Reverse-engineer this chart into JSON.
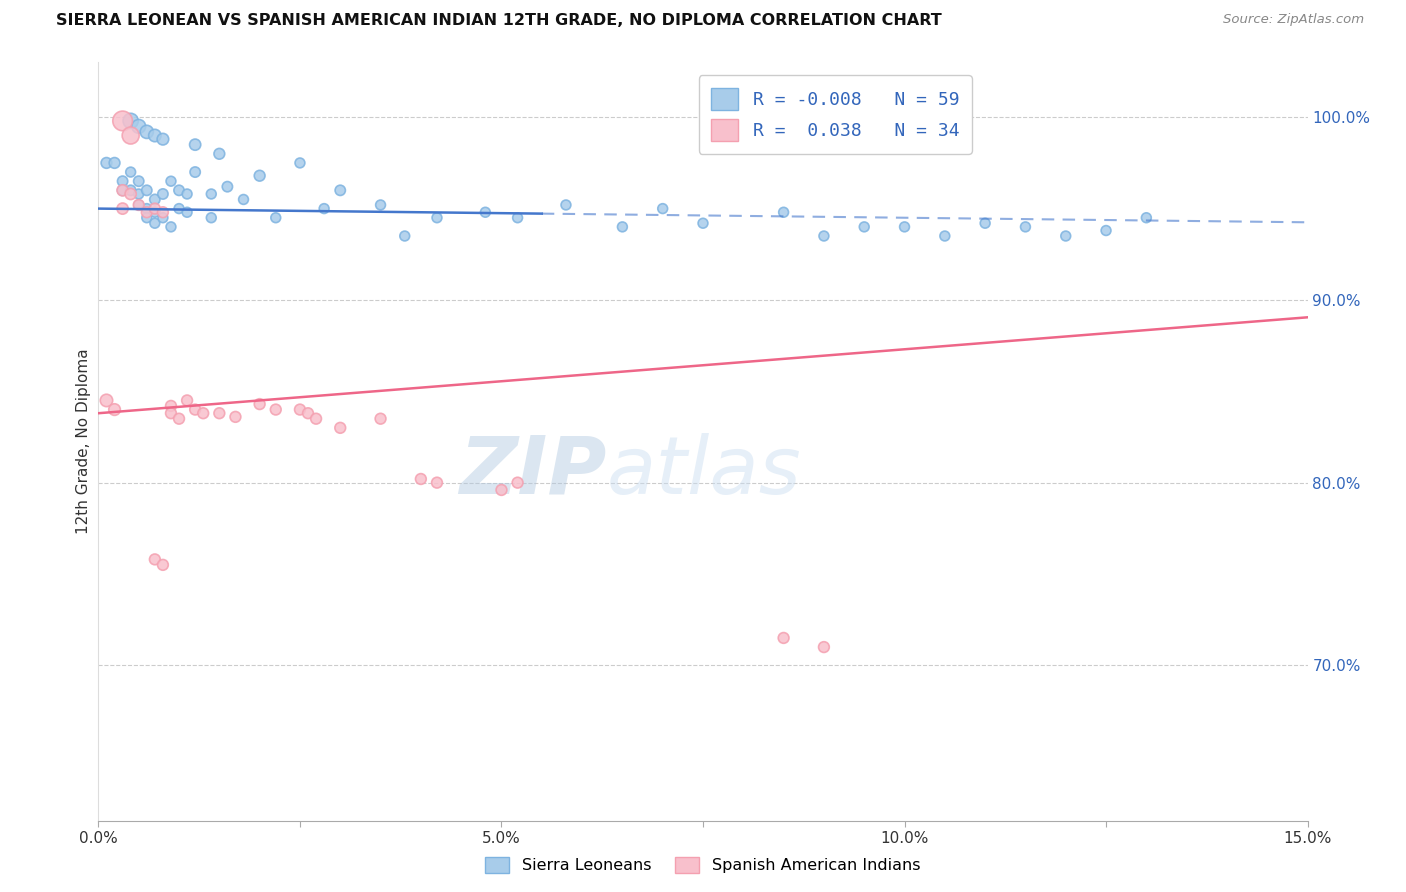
{
  "title": "SIERRA LEONEAN VS SPANISH AMERICAN INDIAN 12TH GRADE, NO DIPLOMA CORRELATION CHART",
  "source": "Source: ZipAtlas.com",
  "ylabel": "12th Grade, No Diploma",
  "watermark": "ZIPatlas",
  "xlim": [
    0.0,
    0.15
  ],
  "ylim": [
    0.615,
    1.03
  ],
  "xticklabels": [
    "0.0%",
    "",
    "5.0%",
    "",
    "10.0%",
    "",
    "15.0%"
  ],
  "xticks": [
    0.0,
    0.025,
    0.05,
    0.075,
    0.1,
    0.125,
    0.15
  ],
  "right_yticks": [
    0.7,
    0.8,
    0.9,
    1.0
  ],
  "right_yticklabels": [
    "70.0%",
    "80.0%",
    "90.0%",
    "100.0%"
  ],
  "blue_R": "-0.008",
  "blue_N": "59",
  "pink_R": "0.038",
  "pink_N": "34",
  "blue_color": "#7EB3E0",
  "pink_color": "#F4A0B0",
  "blue_fill": "#A8CCEA",
  "pink_fill": "#F8C0CC",
  "blue_line_color": "#4477CC",
  "pink_line_color": "#EE6688",
  "blue_line_slope": -0.05,
  "blue_line_intercept": 0.95,
  "blue_line_solid_end": 0.055,
  "pink_line_slope": 0.35,
  "pink_line_intercept": 0.838,
  "grid_color": "#CCCCCC",
  "background_color": "#FFFFFF",
  "sierra_leonean_x": [
    0.001,
    0.002,
    0.003,
    0.003,
    0.004,
    0.004,
    0.005,
    0.005,
    0.005,
    0.006,
    0.006,
    0.006,
    0.007,
    0.007,
    0.007,
    0.008,
    0.008,
    0.009,
    0.009,
    0.01,
    0.01,
    0.011,
    0.011,
    0.012,
    0.014,
    0.014,
    0.016,
    0.018,
    0.02,
    0.022,
    0.025,
    0.028,
    0.03,
    0.035,
    0.038,
    0.042,
    0.048,
    0.052,
    0.058,
    0.065,
    0.07,
    0.075,
    0.085,
    0.09,
    0.095,
    0.1,
    0.105,
    0.11,
    0.115,
    0.12,
    0.125,
    0.13,
    0.004,
    0.005,
    0.006,
    0.007,
    0.008,
    0.012,
    0.015
  ],
  "sierra_leonean_y": [
    0.975,
    0.975,
    0.965,
    0.96,
    0.97,
    0.96,
    0.965,
    0.958,
    0.952,
    0.96,
    0.95,
    0.945,
    0.955,
    0.948,
    0.942,
    0.958,
    0.945,
    0.965,
    0.94,
    0.96,
    0.95,
    0.958,
    0.948,
    0.97,
    0.958,
    0.945,
    0.962,
    0.955,
    0.968,
    0.945,
    0.975,
    0.95,
    0.96,
    0.952,
    0.935,
    0.945,
    0.948,
    0.945,
    0.952,
    0.94,
    0.95,
    0.942,
    0.948,
    0.935,
    0.94,
    0.94,
    0.935,
    0.942,
    0.94,
    0.935,
    0.938,
    0.945,
    0.998,
    0.995,
    0.992,
    0.99,
    0.988,
    0.985,
    0.98
  ],
  "sierra_leonean_sizes": [
    60,
    60,
    55,
    55,
    50,
    55,
    55,
    50,
    50,
    55,
    50,
    50,
    55,
    50,
    50,
    55,
    50,
    50,
    50,
    55,
    50,
    50,
    50,
    55,
    50,
    50,
    55,
    50,
    60,
    50,
    50,
    50,
    55,
    50,
    50,
    50,
    50,
    50,
    50,
    50,
    50,
    50,
    50,
    50,
    50,
    50,
    50,
    50,
    50,
    50,
    50,
    50,
    120,
    100,
    90,
    80,
    70,
    65,
    60
  ],
  "spanish_american_x": [
    0.001,
    0.002,
    0.003,
    0.003,
    0.004,
    0.005,
    0.006,
    0.007,
    0.008,
    0.009,
    0.009,
    0.01,
    0.011,
    0.012,
    0.013,
    0.015,
    0.017,
    0.02,
    0.022,
    0.025,
    0.026,
    0.027,
    0.03,
    0.035,
    0.04,
    0.042,
    0.05,
    0.052,
    0.085,
    0.09,
    0.003,
    0.004,
    0.007,
    0.008
  ],
  "spanish_american_y": [
    0.845,
    0.84,
    0.96,
    0.95,
    0.958,
    0.952,
    0.948,
    0.95,
    0.948,
    0.842,
    0.838,
    0.835,
    0.845,
    0.84,
    0.838,
    0.838,
    0.836,
    0.843,
    0.84,
    0.84,
    0.838,
    0.835,
    0.83,
    0.835,
    0.802,
    0.8,
    0.796,
    0.8,
    0.715,
    0.71,
    0.998,
    0.99,
    0.758,
    0.755
  ],
  "spanish_american_sizes": [
    80,
    70,
    65,
    65,
    65,
    60,
    60,
    60,
    60,
    60,
    60,
    60,
    60,
    60,
    60,
    60,
    60,
    60,
    60,
    60,
    60,
    60,
    60,
    60,
    60,
    60,
    60,
    60,
    60,
    60,
    200,
    150,
    60,
    60
  ]
}
